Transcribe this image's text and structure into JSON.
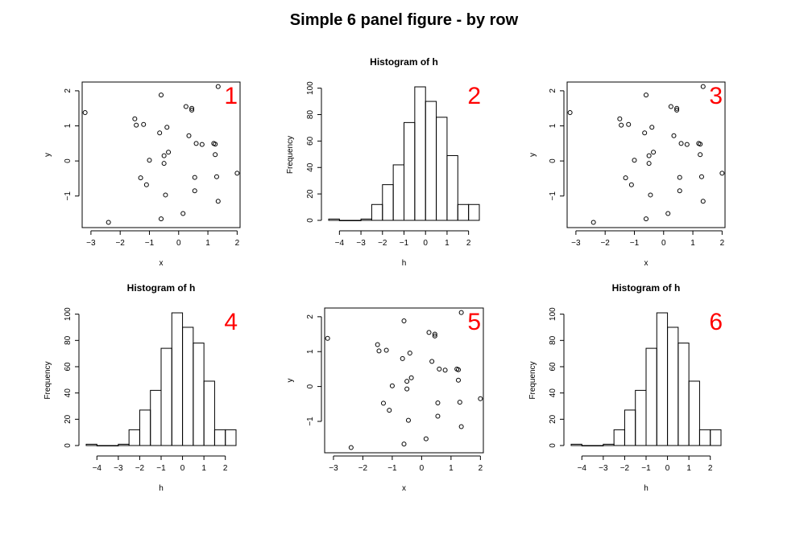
{
  "figure": {
    "title": "Simple 6 panel figure - by row",
    "panel_label_color": "#ff0000"
  },
  "chart_data": [
    {
      "panel_label": "1",
      "type": "scatter",
      "title": "",
      "xlabel": "x",
      "ylabel": "y",
      "xticks": [
        -3,
        -2,
        -1,
        0,
        1,
        2
      ],
      "yticks": [
        -1,
        0,
        1,
        2
      ],
      "xlim": [
        -3.3,
        2.1
      ],
      "ylim": [
        -1.9,
        2.25
      ],
      "x": [
        -3.2,
        -2.4,
        -1.5,
        -1.45,
        -1.3,
        -1.2,
        -1.1,
        -1.0,
        -0.65,
        -0.6,
        -0.6,
        -0.5,
        -0.5,
        -0.45,
        -0.4,
        -0.35,
        0.15,
        0.25,
        0.35,
        0.45,
        0.45,
        0.55,
        0.55,
        0.6,
        0.8,
        1.2,
        1.25,
        1.25,
        1.35,
        1.35,
        1.3,
        2.0
      ],
      "y": [
        1.38,
        -1.75,
        1.2,
        1.02,
        -0.48,
        1.04,
        -0.68,
        0.02,
        0.8,
        1.88,
        -1.65,
        0.15,
        -0.07,
        -0.97,
        0.96,
        0.25,
        -1.5,
        1.55,
        0.72,
        1.45,
        1.5,
        -0.85,
        -0.47,
        0.5,
        0.47,
        0.5,
        0.18,
        0.48,
        2.12,
        -1.15,
        -0.45,
        -0.35
      ]
    },
    {
      "panel_label": "2",
      "type": "bar",
      "title": "Histogram of h",
      "xlabel": "h",
      "ylabel": "Frequency",
      "xticks": [
        -4,
        -3,
        -2,
        -1,
        0,
        1,
        2
      ],
      "yticks": [
        0,
        20,
        40,
        60,
        80,
        100
      ],
      "xlim": [
        -4.5,
        2.5
      ],
      "ylim": [
        0,
        101
      ],
      "bin_edges": [
        -4.5,
        -4.0,
        -3.5,
        -3.0,
        -2.5,
        -2.0,
        -1.5,
        -1.0,
        -0.5,
        0.0,
        0.5,
        1.0,
        1.5,
        2.0,
        2.5
      ],
      "counts": [
        1,
        0,
        0,
        1,
        12,
        27,
        42,
        74,
        101,
        90,
        78,
        49,
        12,
        12
      ]
    },
    {
      "panel_label": "3",
      "type": "scatter",
      "title": "",
      "xlabel": "x",
      "ylabel": "y",
      "xticks": [
        -3,
        -2,
        -1,
        0,
        1,
        2
      ],
      "yticks": [
        -1,
        0,
        1,
        2
      ],
      "xlim": [
        -3.3,
        2.1
      ],
      "ylim": [
        -1.9,
        2.25
      ],
      "x": [
        -3.2,
        -2.4,
        -1.5,
        -1.45,
        -1.3,
        -1.2,
        -1.1,
        -1.0,
        -0.65,
        -0.6,
        -0.6,
        -0.5,
        -0.5,
        -0.45,
        -0.4,
        -0.35,
        0.15,
        0.25,
        0.35,
        0.45,
        0.45,
        0.55,
        0.55,
        0.6,
        0.8,
        1.2,
        1.25,
        1.25,
        1.35,
        1.35,
        1.3,
        2.0
      ],
      "y": [
        1.38,
        -1.75,
        1.2,
        1.02,
        -0.48,
        1.04,
        -0.68,
        0.02,
        0.8,
        1.88,
        -1.65,
        0.15,
        -0.07,
        -0.97,
        0.96,
        0.25,
        -1.5,
        1.55,
        0.72,
        1.45,
        1.5,
        -0.85,
        -0.47,
        0.5,
        0.47,
        0.5,
        0.18,
        0.48,
        2.12,
        -1.15,
        -0.45,
        -0.35
      ]
    },
    {
      "panel_label": "4",
      "type": "bar",
      "title": "Histogram of h",
      "xlabel": "h",
      "ylabel": "Frequency",
      "xticks": [
        -4,
        -3,
        -2,
        -1,
        0,
        1,
        2
      ],
      "yticks": [
        0,
        20,
        40,
        60,
        80,
        100
      ],
      "xlim": [
        -4.5,
        2.5
      ],
      "ylim": [
        0,
        101
      ],
      "bin_edges": [
        -4.5,
        -4.0,
        -3.5,
        -3.0,
        -2.5,
        -2.0,
        -1.5,
        -1.0,
        -0.5,
        0.0,
        0.5,
        1.0,
        1.5,
        2.0,
        2.5
      ],
      "counts": [
        1,
        0,
        0,
        1,
        12,
        27,
        42,
        74,
        101,
        90,
        78,
        49,
        12,
        12
      ]
    },
    {
      "panel_label": "5",
      "type": "scatter",
      "title": "",
      "xlabel": "x",
      "ylabel": "y",
      "xticks": [
        -3,
        -2,
        -1,
        0,
        1,
        2
      ],
      "yticks": [
        -1,
        0,
        1,
        2
      ],
      "xlim": [
        -3.3,
        2.1
      ],
      "ylim": [
        -1.9,
        2.25
      ],
      "x": [
        -3.2,
        -2.4,
        -1.5,
        -1.45,
        -1.3,
        -1.2,
        -1.1,
        -1.0,
        -0.65,
        -0.6,
        -0.6,
        -0.5,
        -0.5,
        -0.45,
        -0.4,
        -0.35,
        0.15,
        0.25,
        0.35,
        0.45,
        0.45,
        0.55,
        0.55,
        0.6,
        0.8,
        1.2,
        1.25,
        1.25,
        1.35,
        1.35,
        1.3,
        2.0
      ],
      "y": [
        1.38,
        -1.75,
        1.2,
        1.02,
        -0.48,
        1.04,
        -0.68,
        0.02,
        0.8,
        1.88,
        -1.65,
        0.15,
        -0.07,
        -0.97,
        0.96,
        0.25,
        -1.5,
        1.55,
        0.72,
        1.45,
        1.5,
        -0.85,
        -0.47,
        0.5,
        0.47,
        0.5,
        0.18,
        0.48,
        2.12,
        -1.15,
        -0.45,
        -0.35
      ]
    },
    {
      "panel_label": "6",
      "type": "bar",
      "title": "Histogram of h",
      "xlabel": "h",
      "ylabel": "Frequency",
      "xticks": [
        -4,
        -3,
        -2,
        -1,
        0,
        1,
        2
      ],
      "yticks": [
        0,
        20,
        40,
        60,
        80,
        100
      ],
      "xlim": [
        -4.5,
        2.5
      ],
      "ylim": [
        0,
        101
      ],
      "bin_edges": [
        -4.5,
        -4.0,
        -3.5,
        -3.0,
        -2.5,
        -2.0,
        -1.5,
        -1.0,
        -0.5,
        0.0,
        0.5,
        1.0,
        1.5,
        2.0,
        2.5
      ],
      "counts": [
        1,
        0,
        0,
        1,
        12,
        27,
        42,
        74,
        101,
        90,
        78,
        49,
        12,
        12
      ]
    }
  ]
}
